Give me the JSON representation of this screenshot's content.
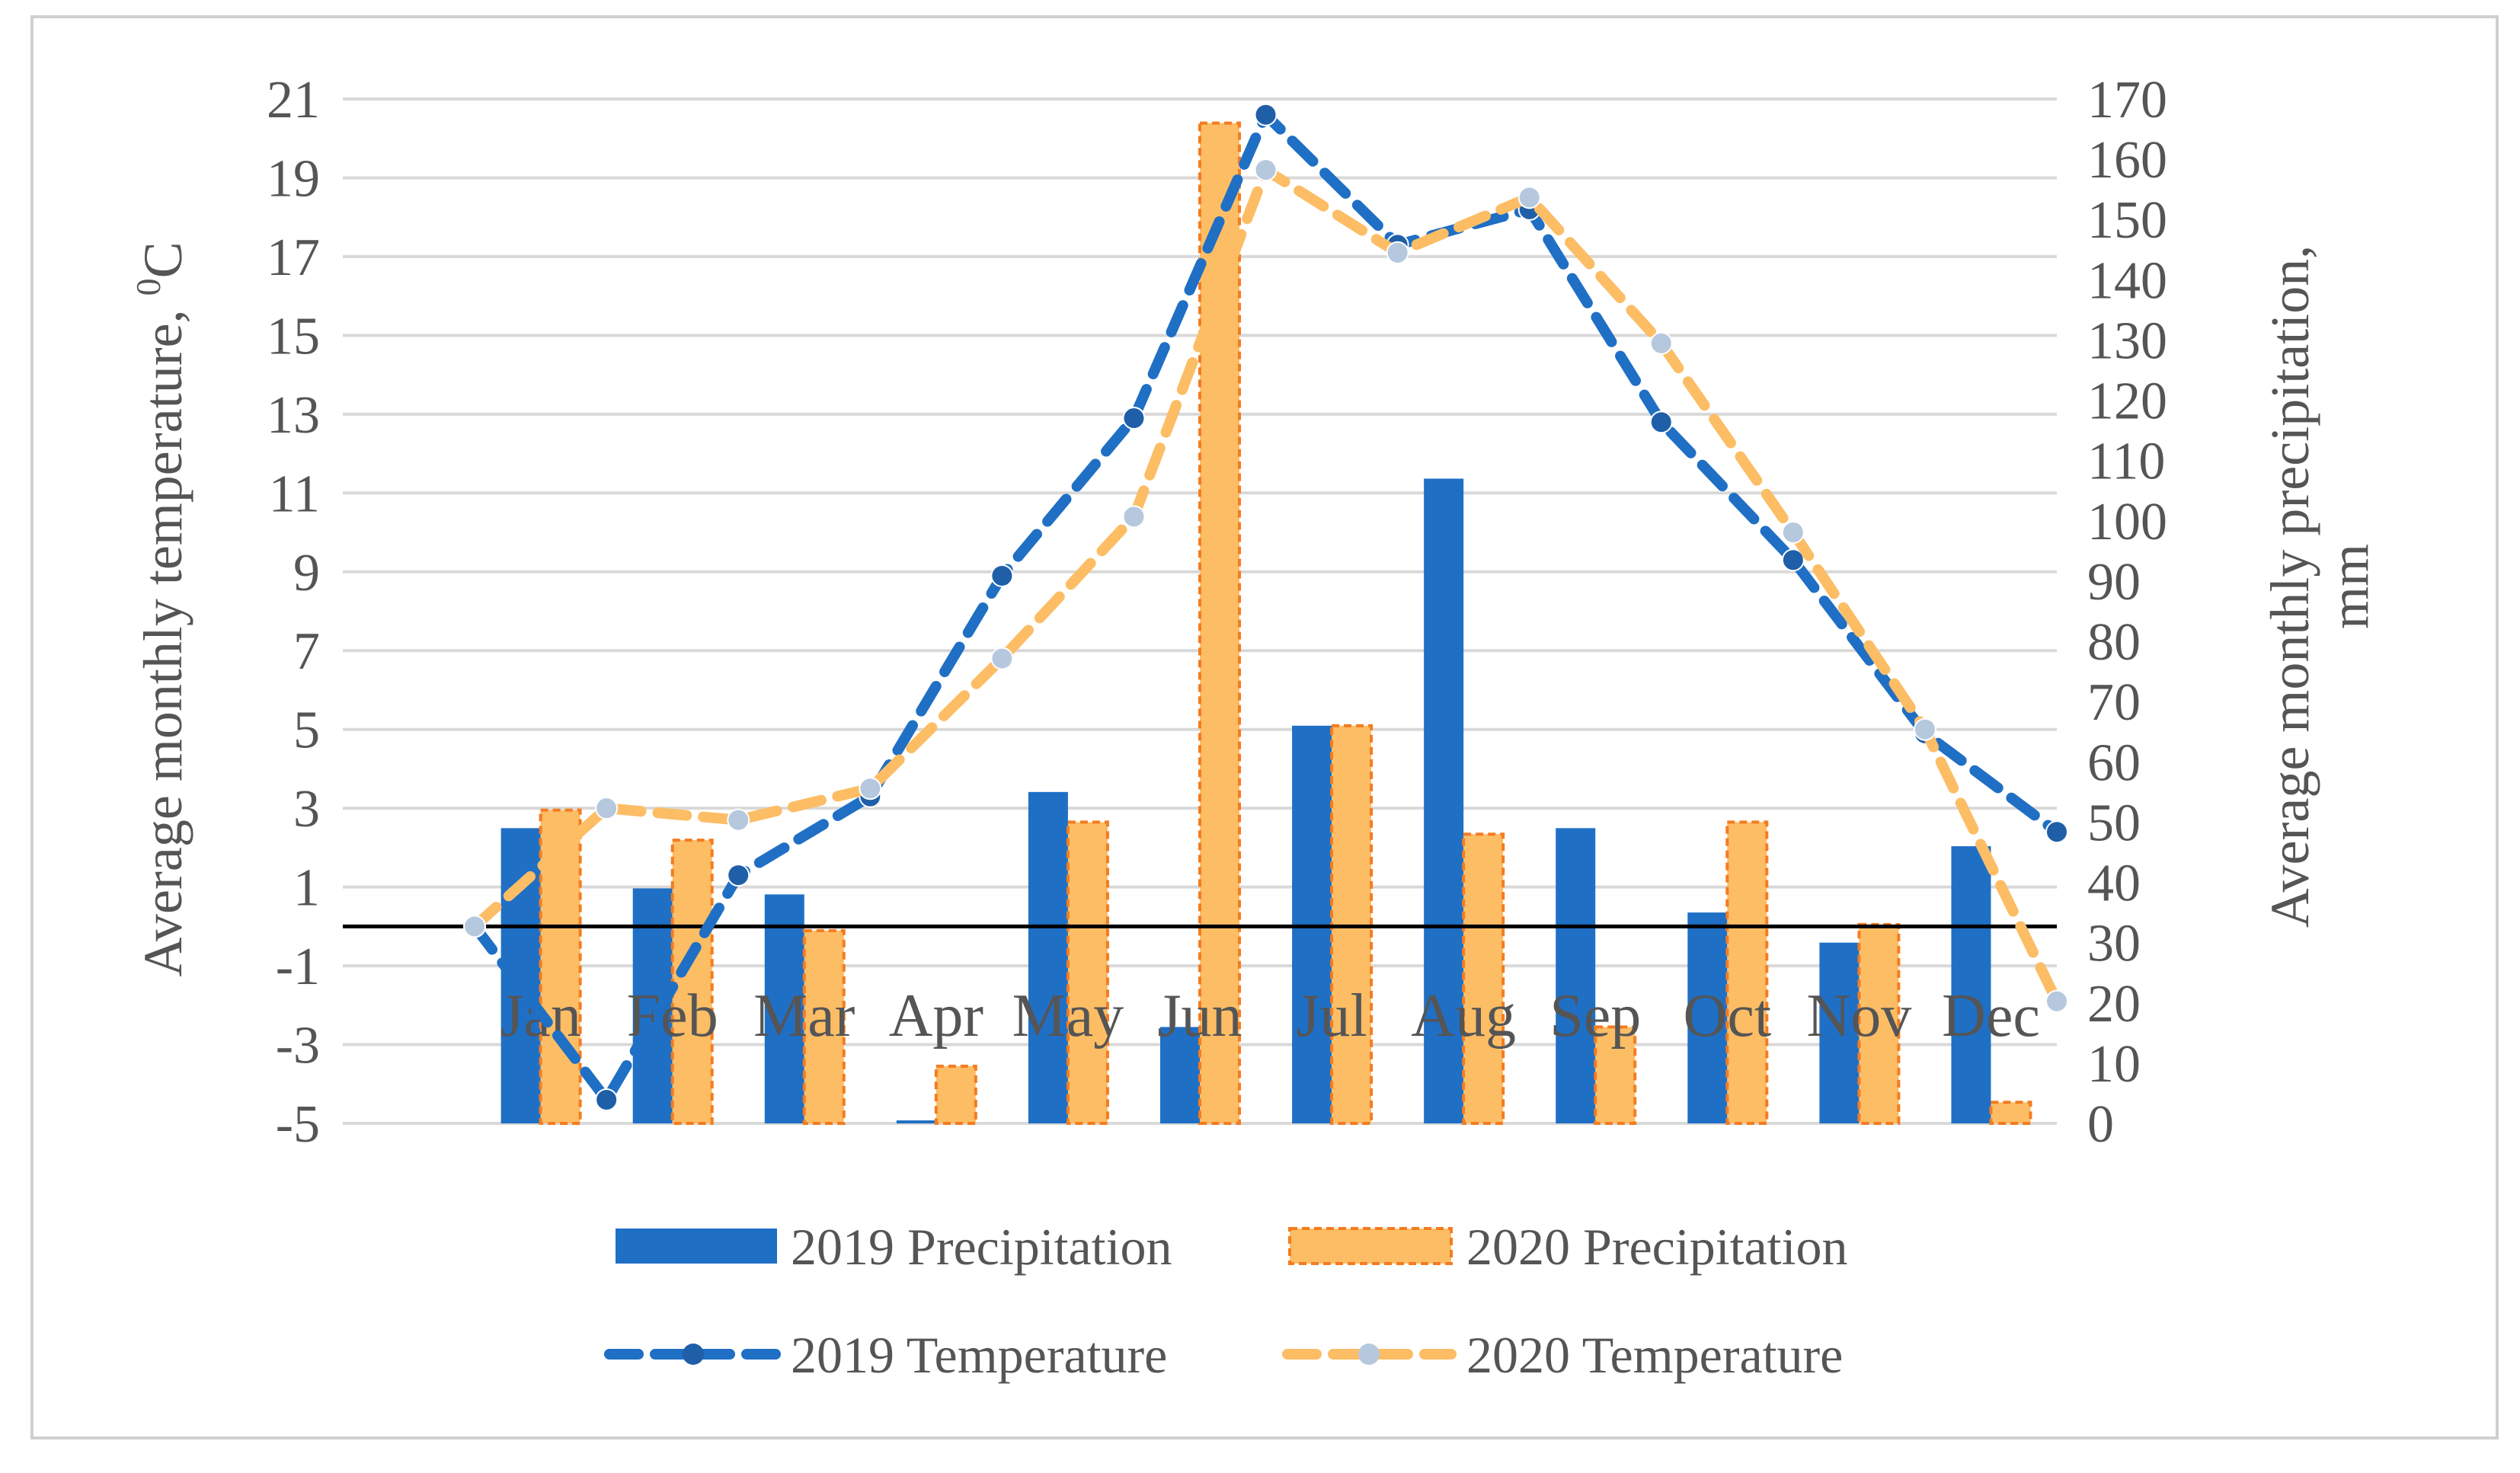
{
  "chart_data": {
    "type": "bar-line-combo",
    "categories": [
      "Jan",
      "Feb",
      "Mar",
      "Apr",
      "May",
      "Jun",
      "Jul",
      "Aug",
      "Sep",
      "Oct",
      "Nov",
      "Dec"
    ],
    "left_axis": {
      "label": "Average monthly temperature, ",
      "label_superscript": "0",
      "label_suffix": "C",
      "min": -5,
      "max": 21,
      "ticks": [
        "21",
        "19",
        "17",
        "15",
        "13",
        "11",
        "9",
        "7",
        "5",
        "3",
        "1",
        "-1",
        "-3",
        "-5"
      ]
    },
    "right_axis": {
      "label_line1": "Average monthly precipitation,",
      "label_line2": "mm",
      "min": 0,
      "max": 170,
      "ticks": [
        "170",
        "160",
        "150",
        "140",
        "130",
        "120",
        "110",
        "100",
        "90",
        "80",
        "70",
        "60",
        "50",
        "40",
        "30",
        "20",
        "10",
        "0"
      ]
    },
    "precipitation_series": [
      {
        "name": "2019 Precipitation",
        "color": "#1f6fc5",
        "values": [
          49,
          39,
          38,
          0.5,
          55,
          16,
          66,
          107,
          49,
          35,
          30,
          46
        ]
      },
      {
        "name": "2020 Precipitation",
        "color": "#fcbd65",
        "border": "#f47c20",
        "values": [
          52,
          47,
          32,
          9.5,
          50,
          166,
          66,
          48,
          16,
          50,
          33,
          3.5
        ]
      }
    ],
    "temperature_series": [
      {
        "name": "2019 Temperature",
        "color": "#1f6fc5",
        "marker": "#1f5fa8",
        "values": [
          0,
          -4.4,
          1.3,
          3.3,
          8.9,
          12.9,
          20.6,
          17.3,
          18.2,
          12.8,
          9.3,
          4.9,
          2.4
        ]
      },
      {
        "name": "2020 Temperature",
        "color": "#fcbd65",
        "marker": "#b5c8de",
        "values": [
          0,
          3,
          2.7,
          3.5,
          6.8,
          10.4,
          19.2,
          17.1,
          18.5,
          14.8,
          10.0,
          5.0,
          -1.9
        ]
      }
    ],
    "zero_line_color": "#000000",
    "grid_color": "#d9d9d9",
    "legend_position": "bottom"
  }
}
